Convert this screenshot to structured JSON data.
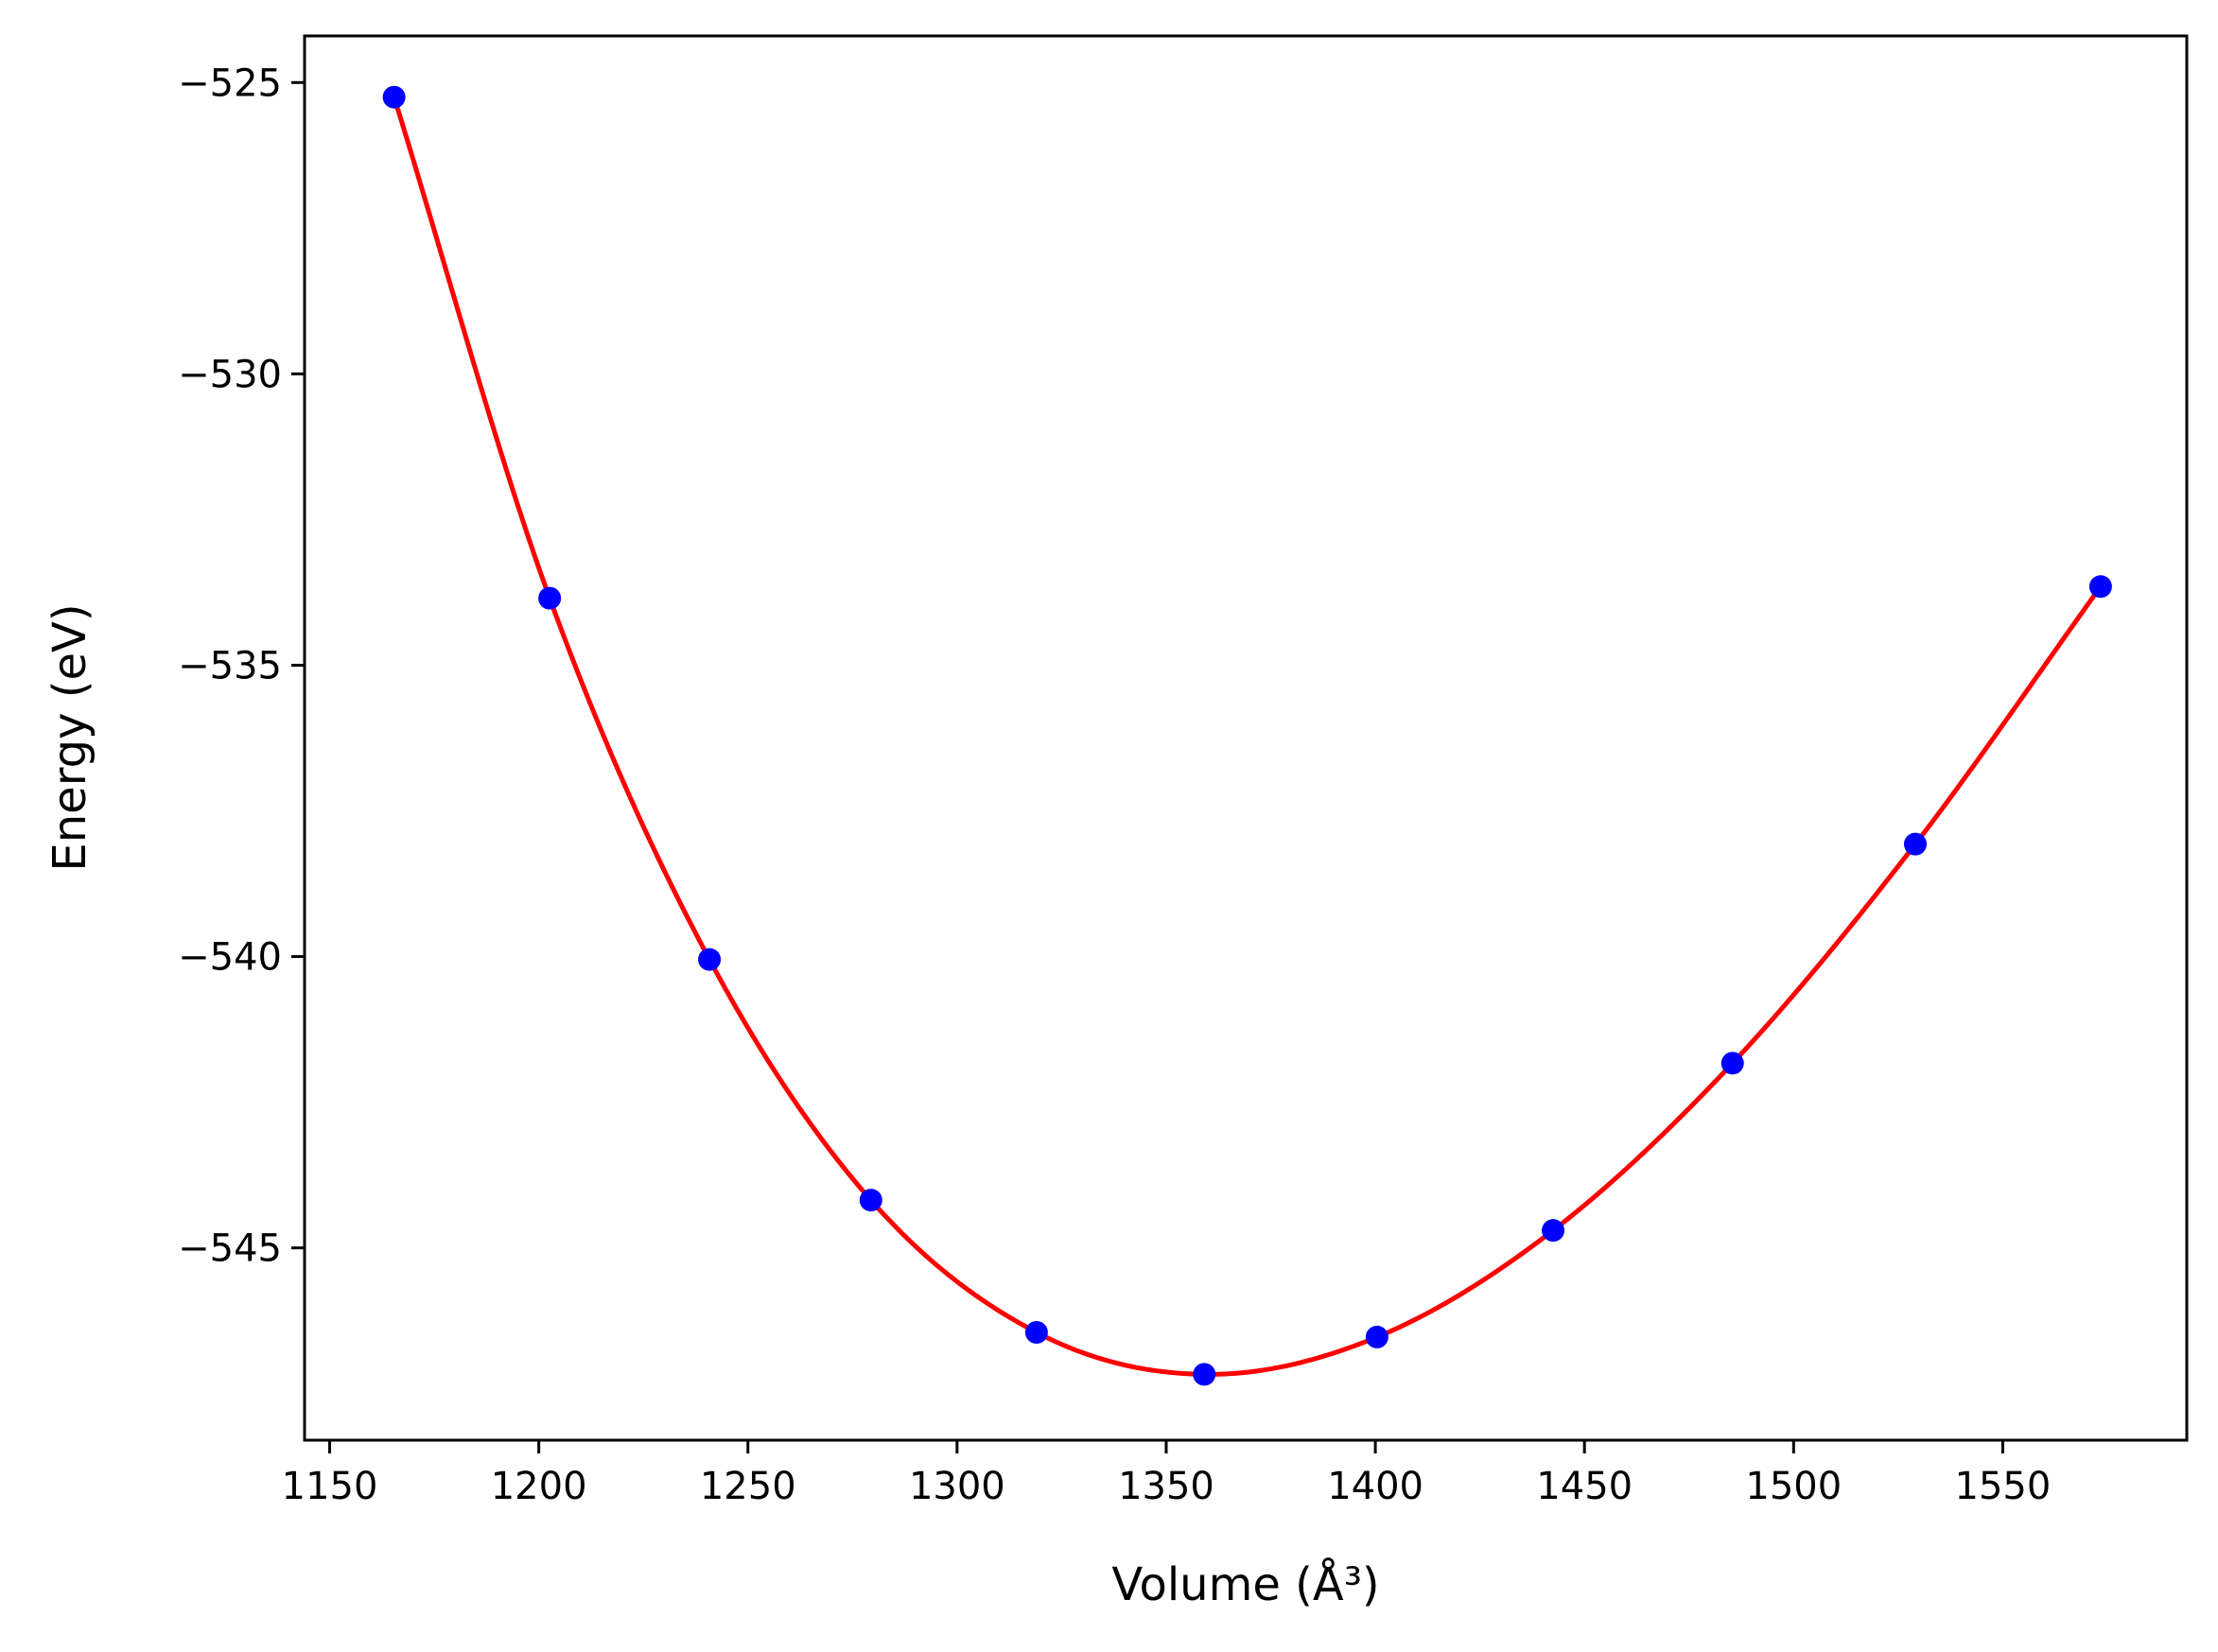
{
  "chart_data": {
    "type": "line",
    "xlabel": "Volume (Å³)",
    "ylabel": "Energy (eV)",
    "xlim": [
      1144,
      1594
    ],
    "ylim": [
      -548.3,
      -524.2
    ],
    "x_ticks": [
      1150,
      1200,
      1250,
      1300,
      1350,
      1400,
      1450,
      1500,
      1550
    ],
    "x_tick_labels": [
      "1150",
      "1200",
      "1250",
      "1300",
      "1350",
      "1400",
      "1450",
      "1500",
      "1550"
    ],
    "y_ticks": [
      -525,
      -530,
      -535,
      -540,
      -545
    ],
    "y_tick_labels": [
      "−525",
      "−530",
      "−535",
      "−540",
      "−545"
    ],
    "grid": false,
    "series": [
      {
        "kind": "scatter",
        "color": "#0000ff",
        "x": [
          1165.4,
          1202.6,
          1240.8,
          1279.4,
          1319.0,
          1359.1,
          1400.4,
          1442.5,
          1485.4,
          1529.1,
          1573.4
        ],
        "y": [
          -525.25,
          -533.85,
          -540.05,
          -544.18,
          -546.45,
          -547.17,
          -546.53,
          -544.7,
          -541.83,
          -538.07,
          -533.65
        ]
      },
      {
        "kind": "fit-line",
        "color": "#ff0000",
        "x": [
          1165.4,
          1202.6,
          1240.8,
          1279.4,
          1319.0,
          1359.1,
          1400.4,
          1442.5,
          1485.4,
          1529.1,
          1573.4
        ],
        "y": [
          -525.25,
          -533.85,
          -540.05,
          -544.18,
          -546.45,
          -547.17,
          -546.53,
          -544.7,
          -541.83,
          -538.07,
          -533.65
        ]
      }
    ]
  }
}
